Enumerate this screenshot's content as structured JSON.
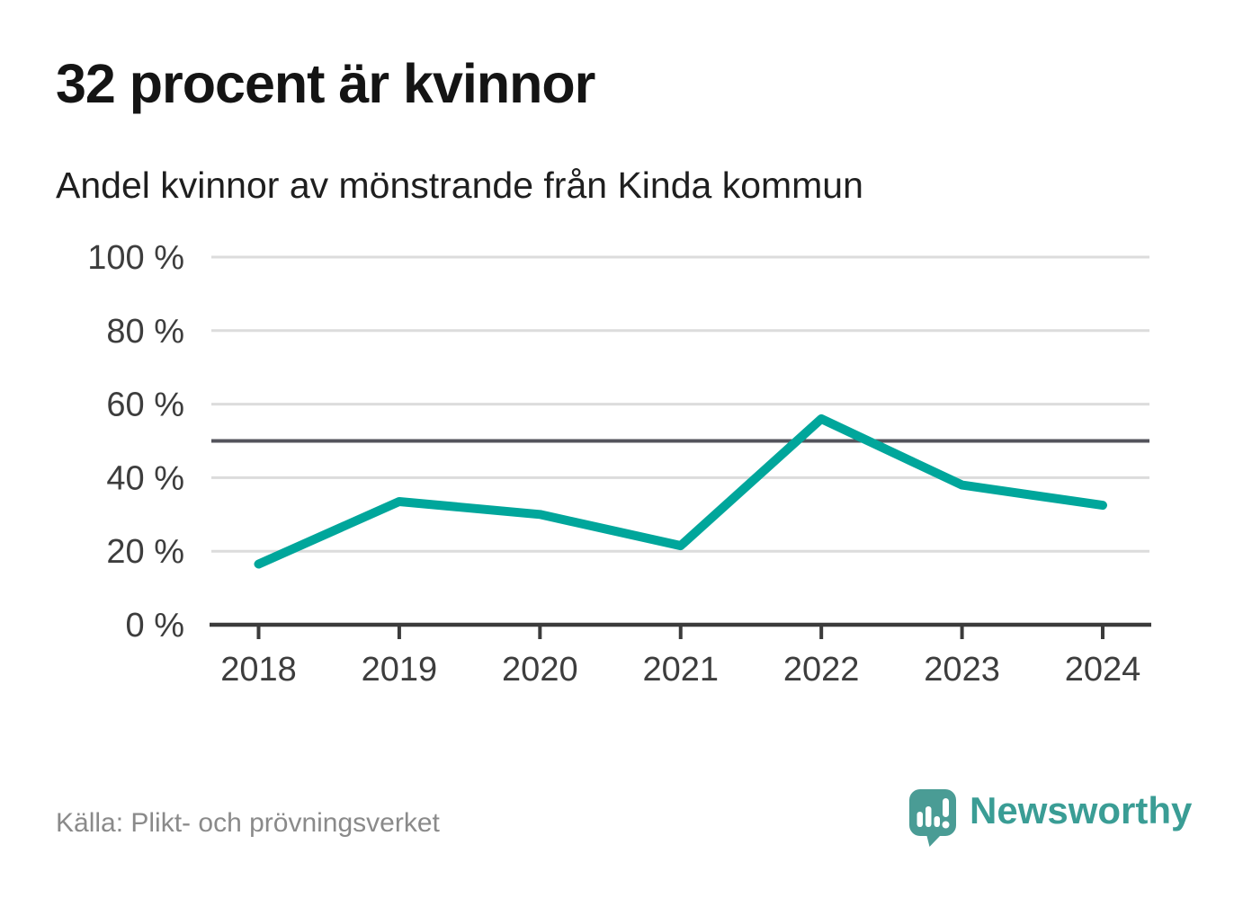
{
  "header": {
    "title": "32 procent är kvinnor",
    "subtitle": "Andel kvinnor av mönstrande från Kinda kommun"
  },
  "chart_data": {
    "type": "line",
    "title": "32 procent är kvinnor",
    "subtitle": "Andel kvinnor av mönstrande från Kinda kommun",
    "x": [
      "2018",
      "2019",
      "2020",
      "2021",
      "2022",
      "2023",
      "2024"
    ],
    "series": [
      {
        "name": "Andel kvinnor av mönstrande",
        "values": [
          16.5,
          33.5,
          30,
          21.5,
          56,
          38,
          32.5
        ]
      }
    ],
    "unit": "%",
    "ylim": [
      0,
      100
    ],
    "y_tick_values": [
      0,
      20,
      40,
      60,
      80,
      100
    ],
    "y_tick_labels": [
      "0 %",
      "20 %",
      "40 %",
      "60 %",
      "80 %",
      "100 %"
    ],
    "reference_line_y": 50,
    "grid": true,
    "legend": "none",
    "line_color": "#00a69b",
    "reference_line_color": "#54545c",
    "axis_color": "#3b3b3b",
    "gridline_color": "#dcdcdc",
    "tick_label_color": "#3d3d3d"
  },
  "footer": {
    "source": "Källa: Plikt- och prövningsverket",
    "brand_name": "Newsworthy",
    "brand_color": "#3a9d95",
    "brand_icon_color": "#4a9c95"
  }
}
